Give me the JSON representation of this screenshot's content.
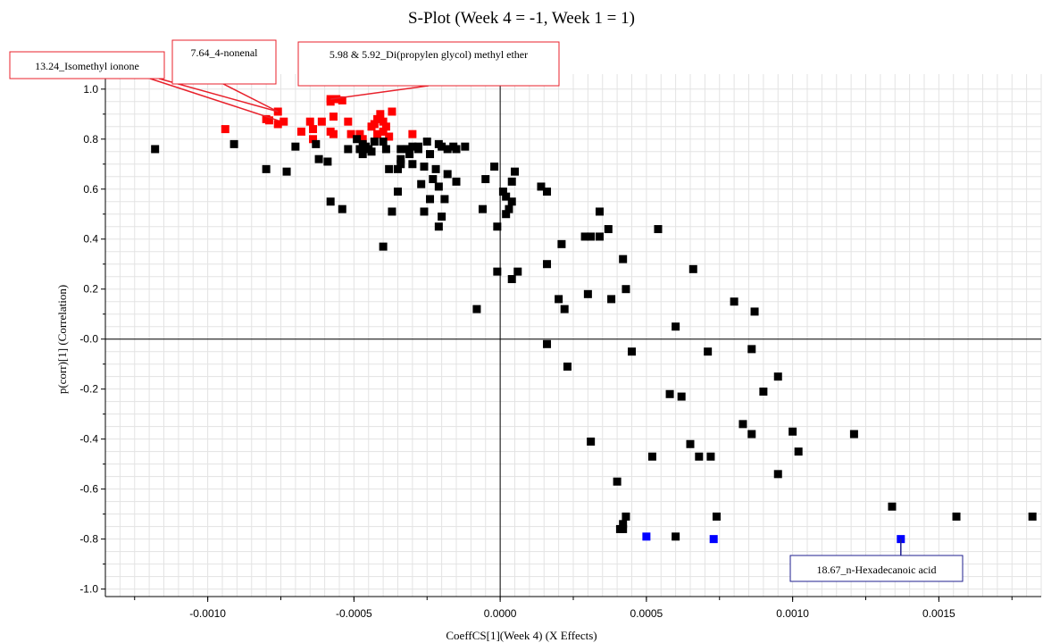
{
  "chart_data": {
    "type": "scatter",
    "title": "S-Plot (Week 4 = -1, Week 1 = 1)",
    "xlabel": "CoeffCS[1](Week 4) (X Effects)",
    "ylabel": "p(corr)[1] (Correlation)",
    "xlim": [
      -0.00135,
      0.00185
    ],
    "ylim": [
      -1.03,
      1.06
    ],
    "x_ticks": [
      -0.001,
      -0.0005,
      0.0,
      0.0005,
      0.001,
      0.0015
    ],
    "x_tick_labels": [
      "-0.0010",
      "-0.0005",
      "0.0000",
      "0.0005",
      "0.0010",
      "0.0015"
    ],
    "y_ticks": [
      1.0,
      0.8,
      0.6,
      0.4,
      0.2,
      0.0,
      -0.2,
      -0.4,
      -0.6,
      -0.8,
      -1.0
    ],
    "y_tick_labels": [
      "1.0",
      "0.8",
      "0.6",
      "0.4",
      "0.2",
      "-0.0",
      "-0.2",
      "-0.4",
      "-0.6",
      "-0.8",
      "-1.0"
    ],
    "grid": true,
    "colors": {
      "red": "#ff0000",
      "black": "#000000",
      "blue": "#0000ff",
      "callout_red": "#e8212b",
      "callout_blue": "#1f1f8f"
    },
    "series": [
      {
        "color": "red",
        "points": [
          [
            -0.00094,
            0.84
          ],
          [
            -0.0008,
            0.88
          ],
          [
            -0.00079,
            0.875
          ],
          [
            -0.00076,
            0.91
          ],
          [
            -0.00076,
            0.86
          ],
          [
            -0.00074,
            0.87
          ],
          [
            -0.00068,
            0.83
          ],
          [
            -0.00065,
            0.87
          ],
          [
            -0.00064,
            0.8
          ],
          [
            -0.00064,
            0.84
          ],
          [
            -0.00061,
            0.87
          ],
          [
            -0.00058,
            0.95
          ],
          [
            -0.00058,
            0.96
          ],
          [
            -0.00058,
            0.83
          ],
          [
            -0.00057,
            0.89
          ],
          [
            -0.00056,
            0.96
          ],
          [
            -0.00054,
            0.955
          ],
          [
            -0.00052,
            0.87
          ],
          [
            -0.00051,
            0.82
          ],
          [
            -0.00048,
            0.82
          ],
          [
            -0.00047,
            0.8
          ],
          [
            -0.00044,
            0.85
          ],
          [
            -0.00043,
            0.86
          ],
          [
            -0.00042,
            0.82
          ],
          [
            -0.00042,
            0.88
          ],
          [
            -0.00041,
            0.9
          ],
          [
            -0.0004,
            0.83
          ],
          [
            -0.0004,
            0.87
          ],
          [
            -0.00039,
            0.85
          ],
          [
            -0.00038,
            0.81
          ],
          [
            -0.00037,
            0.91
          ],
          [
            -0.0003,
            0.82
          ],
          [
            -0.00057,
            0.82
          ]
        ]
      },
      {
        "color": "black",
        "points": [
          [
            -0.00118,
            0.76
          ],
          [
            -0.00091,
            0.78
          ],
          [
            -0.0008,
            0.68
          ],
          [
            -0.00073,
            0.67
          ],
          [
            -0.0007,
            0.77
          ],
          [
            -0.00063,
            0.78
          ],
          [
            -0.00062,
            0.72
          ],
          [
            -0.00059,
            0.71
          ],
          [
            -0.00058,
            0.55
          ],
          [
            -0.00054,
            0.52
          ],
          [
            -0.00052,
            0.76
          ],
          [
            -0.00049,
            0.8
          ],
          [
            -0.00048,
            0.76
          ],
          [
            -0.00047,
            0.74
          ],
          [
            -0.00047,
            0.78
          ],
          [
            -0.00046,
            0.77
          ],
          [
            -0.00045,
            0.76
          ],
          [
            -0.00044,
            0.75
          ],
          [
            -0.00043,
            0.79
          ],
          [
            -0.0004,
            0.37
          ],
          [
            -0.0004,
            0.79
          ],
          [
            -0.00039,
            0.76
          ],
          [
            -0.00038,
            0.68
          ],
          [
            -0.00037,
            0.51
          ],
          [
            -0.00035,
            0.59
          ],
          [
            -0.00035,
            0.68
          ],
          [
            -0.00034,
            0.72
          ],
          [
            -0.00034,
            0.7
          ],
          [
            -0.00034,
            0.76
          ],
          [
            -0.00032,
            0.76
          ],
          [
            -0.00031,
            0.74
          ],
          [
            -0.0003,
            0.77
          ],
          [
            -0.0003,
            0.7
          ],
          [
            -0.00028,
            0.77
          ],
          [
            -0.00028,
            0.76
          ],
          [
            -0.00027,
            0.62
          ],
          [
            -0.00026,
            0.69
          ],
          [
            -0.00026,
            0.51
          ],
          [
            -0.00025,
            0.79
          ],
          [
            -0.00024,
            0.56
          ],
          [
            -0.00024,
            0.74
          ],
          [
            -0.00023,
            0.64
          ],
          [
            -0.00022,
            0.68
          ],
          [
            -0.00021,
            0.78
          ],
          [
            -0.00021,
            0.61
          ],
          [
            -0.00021,
            0.45
          ],
          [
            -0.0002,
            0.77
          ],
          [
            -0.0002,
            0.49
          ],
          [
            -0.00019,
            0.56
          ],
          [
            -0.00018,
            0.76
          ],
          [
            -0.00018,
            0.66
          ],
          [
            -0.00016,
            0.77
          ],
          [
            -0.00015,
            0.76
          ],
          [
            -0.00015,
            0.63
          ],
          [
            -0.00012,
            0.77
          ],
          [
            -8e-05,
            0.12
          ],
          [
            -6e-05,
            0.52
          ],
          [
            -5e-05,
            0.64
          ],
          [
            -2e-05,
            0.69
          ],
          [
            -1e-05,
            0.45
          ],
          [
            -1e-05,
            0.27
          ],
          [
            1e-05,
            0.59
          ],
          [
            2e-05,
            0.57
          ],
          [
            2e-05,
            0.5
          ],
          [
            3e-05,
            0.52
          ],
          [
            4e-05,
            0.55
          ],
          [
            4e-05,
            0.63
          ],
          [
            4e-05,
            0.24
          ],
          [
            5e-05,
            0.67
          ],
          [
            6e-05,
            0.27
          ],
          [
            0.00014,
            0.61
          ],
          [
            0.00016,
            0.59
          ],
          [
            0.00016,
            0.3
          ],
          [
            0.00016,
            -0.02
          ],
          [
            0.0002,
            0.16
          ],
          [
            0.00021,
            0.38
          ],
          [
            0.00022,
            0.12
          ],
          [
            0.00023,
            -0.11
          ],
          [
            0.00029,
            0.41
          ],
          [
            0.0003,
            0.18
          ],
          [
            0.00031,
            0.41
          ],
          [
            0.00031,
            -0.41
          ],
          [
            0.00034,
            0.51
          ],
          [
            0.00034,
            0.41
          ],
          [
            0.00037,
            0.44
          ],
          [
            0.00038,
            0.16
          ],
          [
            0.0004,
            -0.57
          ],
          [
            0.00041,
            -0.76
          ],
          [
            0.00042,
            -0.74
          ],
          [
            0.00042,
            -0.76
          ],
          [
            0.00042,
            0.32
          ],
          [
            0.00043,
            0.2
          ],
          [
            0.00043,
            -0.71
          ],
          [
            0.00045,
            -0.05
          ],
          [
            0.00052,
            -0.47
          ],
          [
            0.00054,
            0.44
          ],
          [
            0.00058,
            -0.22
          ],
          [
            0.0006,
            0.05
          ],
          [
            0.0006,
            -0.79
          ],
          [
            0.00062,
            -0.23
          ],
          [
            0.00065,
            -0.42
          ],
          [
            0.00066,
            0.28
          ],
          [
            0.00068,
            -0.47
          ],
          [
            0.00071,
            -0.05
          ],
          [
            0.00072,
            -0.47
          ],
          [
            0.00074,
            -0.71
          ],
          [
            0.0008,
            0.15
          ],
          [
            0.00083,
            -0.34
          ],
          [
            0.00086,
            -0.04
          ],
          [
            0.00086,
            -0.38
          ],
          [
            0.00087,
            0.11
          ],
          [
            0.0009,
            -0.21
          ],
          [
            0.00095,
            -0.54
          ],
          [
            0.00095,
            -0.15
          ],
          [
            0.001,
            -0.37
          ],
          [
            0.00102,
            -0.45
          ],
          [
            0.00121,
            -0.38
          ],
          [
            0.00134,
            -0.67
          ],
          [
            0.00156,
            -0.71
          ],
          [
            0.00182,
            -0.71
          ]
        ]
      },
      {
        "color": "blue",
        "points": [
          [
            0.0005,
            -0.79
          ],
          [
            0.00073,
            -0.8
          ],
          [
            0.00137,
            -0.8
          ]
        ]
      }
    ],
    "annotations": [
      {
        "text": "13.24_Isomethyl ionone",
        "color": "callout_red"
      },
      {
        "text": "7.64_4-nonenal",
        "color": "callout_red"
      },
      {
        "text": "5.98 & 5.92_Di(propylen glycol) methyl ether",
        "color": "callout_red"
      },
      {
        "text": "18.67_n-Hexadecanoic acid",
        "color": "callout_blue"
      }
    ]
  }
}
